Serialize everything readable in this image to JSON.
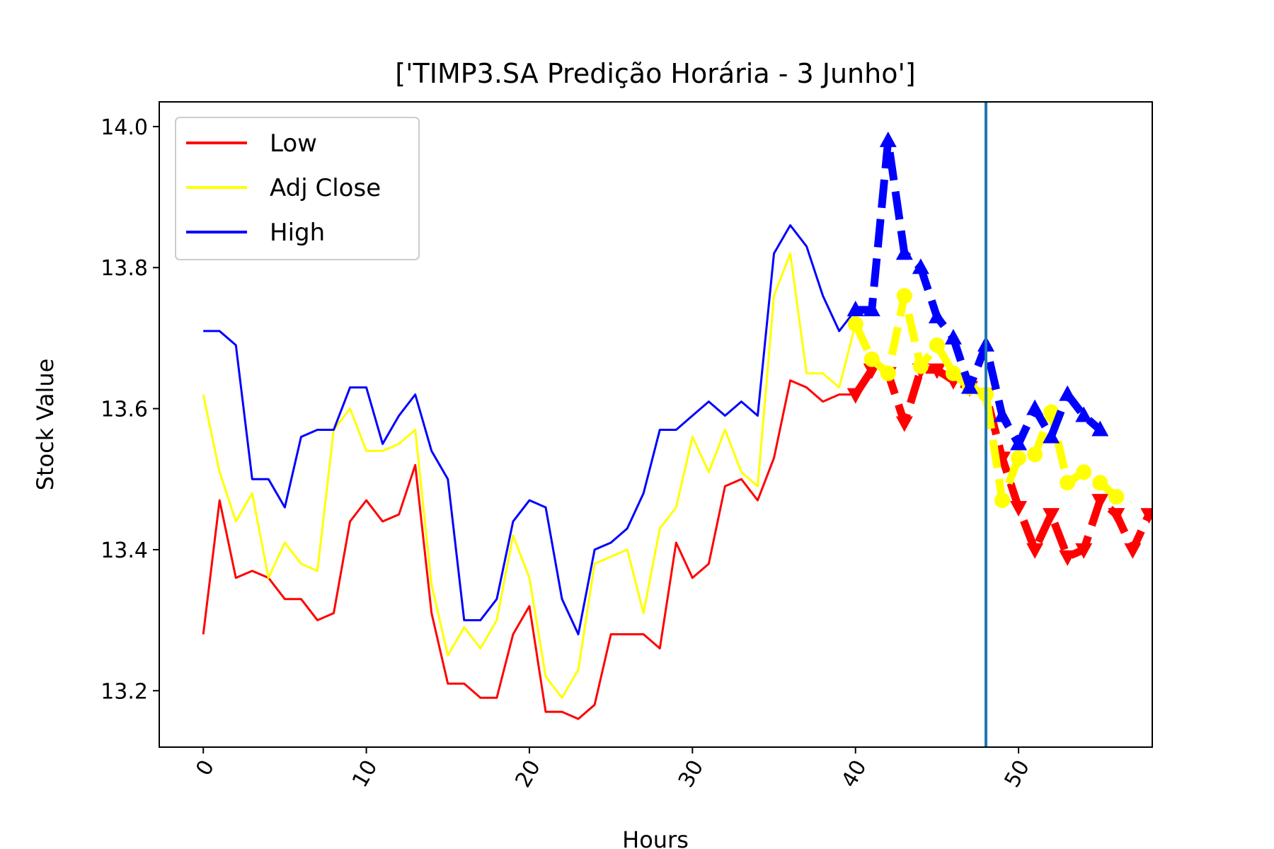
{
  "chart_data": {
    "type": "line",
    "title": "['TIMP3.SA Predição Horária - 3 Junho']",
    "xlabel": "Hours",
    "ylabel": "Stock Value",
    "xlim": [
      -2.7,
      58.2
    ],
    "ylim": [
      13.12,
      14.035
    ],
    "xticks": [
      0,
      10,
      20,
      30,
      40,
      50
    ],
    "yticks": [
      13.2,
      13.4,
      13.6,
      13.8,
      14.0
    ],
    "xtick_labels": [
      "0",
      "10",
      "20",
      "30",
      "40",
      "50"
    ],
    "ytick_labels": [
      "13.2",
      "13.4",
      "13.6",
      "13.8",
      "14.0"
    ],
    "grid": false,
    "legend_position": "top-left",
    "vline_x": 48,
    "vline_color": "#1f77b4",
    "series": [
      {
        "name": "Low",
        "color": "#ff0000",
        "values": [
          13.28,
          13.47,
          13.36,
          13.37,
          13.36,
          13.33,
          13.33,
          13.3,
          13.31,
          13.44,
          13.47,
          13.44,
          13.45,
          13.52,
          13.31,
          13.21,
          13.21,
          13.19,
          13.19,
          13.28,
          13.32,
          13.17,
          13.17,
          13.16,
          13.18,
          13.28,
          13.28,
          13.28,
          13.26,
          13.41,
          13.36,
          13.38,
          13.49,
          13.5,
          13.47,
          13.53,
          13.64,
          13.63,
          13.61,
          13.62,
          13.62
        ],
        "predicted": [
          13.62,
          13.655,
          13.65,
          13.58,
          13.655,
          13.655,
          13.64,
          13.63,
          13.62,
          13.53,
          13.46,
          13.4,
          13.45,
          13.39,
          13.4,
          13.47,
          13.45,
          13.4,
          13.45
        ]
      },
      {
        "name": "Adj Close",
        "color": "#ffff00",
        "values": [
          13.62,
          13.51,
          13.44,
          13.48,
          13.36,
          13.41,
          13.38,
          13.37,
          13.57,
          13.6,
          13.54,
          13.54,
          13.55,
          13.57,
          13.35,
          13.25,
          13.29,
          13.26,
          13.3,
          13.42,
          13.36,
          13.22,
          13.19,
          13.23,
          13.38,
          13.39,
          13.4,
          13.31,
          13.43,
          13.46,
          13.56,
          13.51,
          13.57,
          13.51,
          13.49,
          13.76,
          13.82,
          13.65,
          13.65,
          13.63,
          13.72
        ],
        "predicted": [
          13.72,
          13.67,
          13.65,
          13.76,
          13.66,
          13.69,
          13.65,
          13.63,
          13.62,
          13.47,
          13.53,
          13.535,
          13.595,
          13.495,
          13.51,
          13.495,
          13.475
        ]
      },
      {
        "name": "High",
        "color": "#0000ff",
        "values": [
          13.71,
          13.71,
          13.69,
          13.5,
          13.5,
          13.46,
          13.56,
          13.57,
          13.57,
          13.63,
          13.63,
          13.55,
          13.59,
          13.62,
          13.54,
          13.5,
          13.3,
          13.3,
          13.33,
          13.44,
          13.47,
          13.46,
          13.33,
          13.28,
          13.4,
          13.41,
          13.43,
          13.48,
          13.57,
          13.57,
          13.59,
          13.61,
          13.59,
          13.61,
          13.59,
          13.82,
          13.86,
          13.83,
          13.76,
          13.71,
          13.74
        ],
        "predicted": [
          13.74,
          13.74,
          13.98,
          13.82,
          13.8,
          13.73,
          13.7,
          13.63,
          13.69,
          13.59,
          13.55,
          13.6,
          13.56,
          13.62,
          13.59,
          13.57
        ]
      }
    ]
  }
}
